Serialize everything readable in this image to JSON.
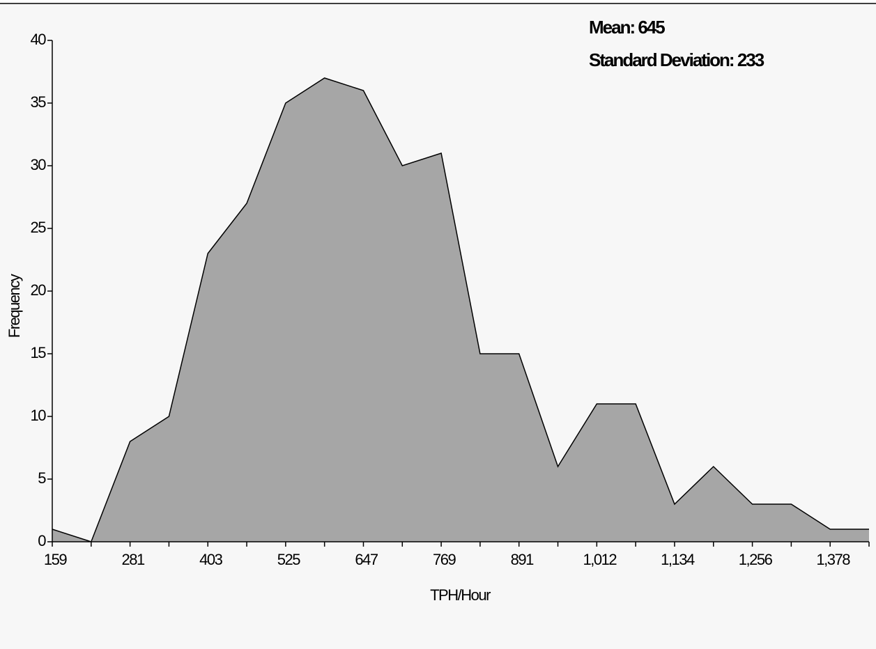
{
  "chart_data": {
    "type": "area",
    "annotations": [
      "Mean: 645",
      "Standard Deviation: 233"
    ],
    "x_label": "TPH/Hour",
    "y_label": "Frequency",
    "categories": [
      "159",
      null,
      "281",
      null,
      "403",
      null,
      "525",
      null,
      "647",
      null,
      "769",
      null,
      "891",
      null,
      "1,012",
      null,
      "1,134",
      null,
      "1,256",
      null,
      "1,378",
      null
    ],
    "values": [
      1,
      0,
      8,
      10,
      23,
      27,
      35,
      37,
      36,
      30,
      31,
      15,
      15,
      6,
      11,
      11,
      3,
      6,
      3,
      3,
      1,
      1
    ],
    "color": "#a6a6a6",
    "ylim": [
      0,
      40
    ],
    "yticks": [
      0,
      5,
      10,
      15,
      20,
      25,
      30,
      35,
      40
    ]
  }
}
